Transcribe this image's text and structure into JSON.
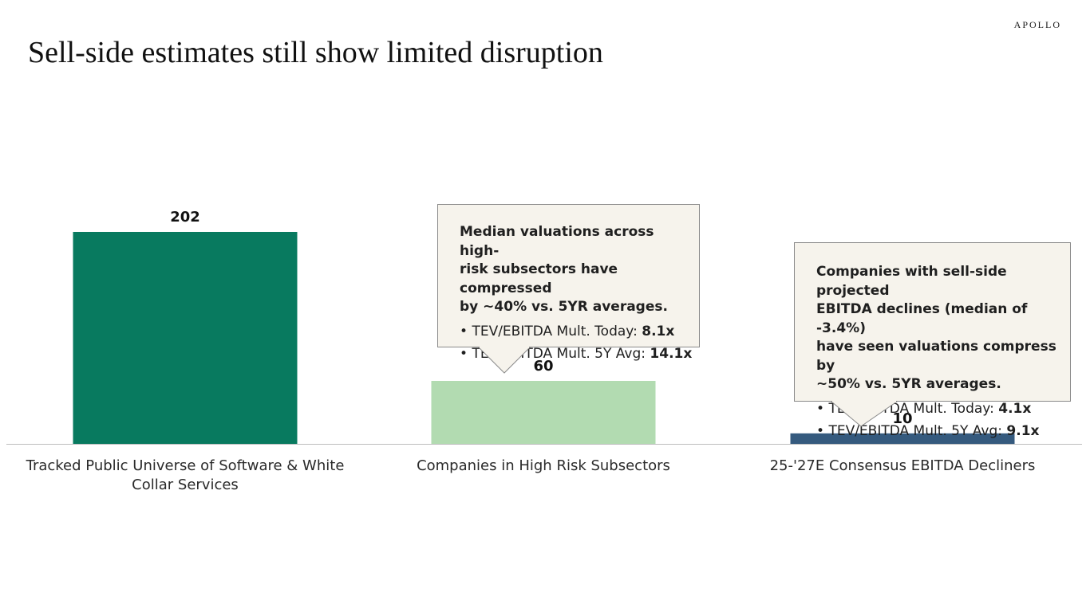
{
  "brand": "APOLLO",
  "title": "Sell-side estimates still show limited disruption",
  "colors": {
    "bar_1": "#087a5f",
    "bar_2": "#b2dbb1",
    "bar_3": "#355a7e",
    "callout_bg": "#f6f3ec"
  },
  "chart_data": {
    "type": "bar",
    "categories": [
      "Tracked Public Universe of Software & White Collar Services",
      "Companies in High Risk Subsectors",
      "25-'27E Consensus EBITDA Decliners"
    ],
    "category_label_lines": [
      [
        "Tracked Public Universe of Software & White",
        "Collar Services"
      ],
      [
        "Companies in High Risk Subsectors"
      ],
      [
        "25-'27E Consensus EBITDA Decliners"
      ]
    ],
    "values": [
      202,
      60,
      10
    ],
    "value_labels": [
      "202",
      "60",
      "10"
    ],
    "ylim": [
      0,
      202
    ],
    "grid": false,
    "title": "",
    "xlabel": "",
    "ylabel": ""
  },
  "callouts": [
    {
      "head_lines": [
        "Median valuations across high-",
        "risk subsectors have compressed",
        "by ~40% vs. 5YR averages."
      ],
      "bullets": [
        {
          "label": "TEV/EBITDA Mult. Today: ",
          "value": "8.1x"
        },
        {
          "label": "TEV/EBITDA Mult. 5Y Avg: ",
          "value": "14.1x"
        }
      ]
    },
    {
      "head_lines": [
        "Companies with sell-side projected",
        "EBITDA declines (median of -3.4%)",
        "have seen valuations compress by",
        "~50% vs. 5YR averages."
      ],
      "bullets": [
        {
          "label": "TEV/EBITDA Mult. Today: ",
          "value": "4.1x"
        },
        {
          "label": "TEV/EBITDA Mult. 5Y Avg: ",
          "value": "9.1x"
        }
      ]
    }
  ]
}
